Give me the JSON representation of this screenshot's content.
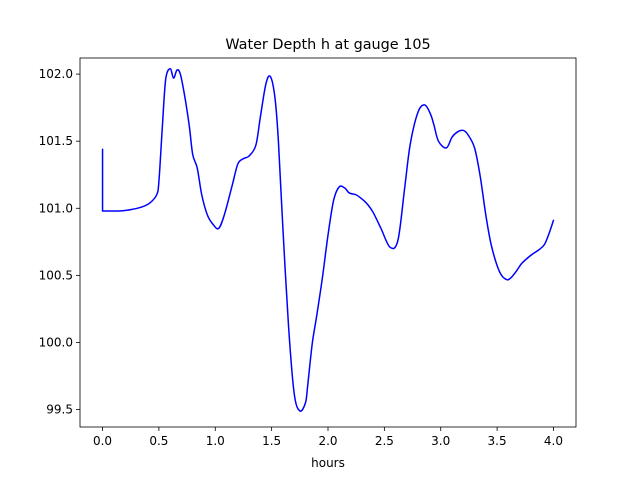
{
  "chart_data": {
    "type": "line",
    "title": "Water Depth h at gauge 105",
    "xlabel": "hours",
    "ylabel": "",
    "xlim": [
      -0.2,
      4.2
    ],
    "ylim": [
      99.37,
      102.12
    ],
    "grid": false,
    "x_ticks": [
      0.0,
      0.5,
      1.0,
      1.5,
      2.0,
      2.5,
      3.0,
      3.5,
      4.0
    ],
    "x_tick_labels": [
      "0.0",
      "0.5",
      "1.0",
      "1.5",
      "2.0",
      "2.5",
      "3.0",
      "3.5",
      "4.0"
    ],
    "y_ticks": [
      99.5,
      100.0,
      100.5,
      101.0,
      101.5,
      102.0
    ],
    "y_tick_labels": [
      "99.5",
      "100.0",
      "100.5",
      "101.0",
      "101.5",
      "102.0"
    ],
    "series": [
      {
        "color": "#0000ff",
        "x": [
          0.0,
          0.0,
          0.05,
          0.15,
          0.25,
          0.35,
          0.42,
          0.48,
          0.5,
          0.53,
          0.56,
          0.6,
          0.63,
          0.66,
          0.69,
          0.73,
          0.77,
          0.8,
          0.84,
          0.88,
          0.93,
          0.98,
          1.03,
          1.08,
          1.15,
          1.2,
          1.25,
          1.3,
          1.36,
          1.4,
          1.45,
          1.49,
          1.53,
          1.56,
          1.6,
          1.65,
          1.7,
          1.75,
          1.8,
          1.82,
          1.86,
          1.9,
          1.95,
          2.0,
          2.05,
          2.1,
          2.15,
          2.18,
          2.2,
          2.25,
          2.3,
          2.35,
          2.4,
          2.47,
          2.55,
          2.62,
          2.68,
          2.73,
          2.8,
          2.86,
          2.91,
          2.94,
          2.98,
          3.05,
          3.1,
          3.15,
          3.2,
          3.24,
          3.3,
          3.35,
          3.4,
          3.45,
          3.52,
          3.58,
          3.62,
          3.67,
          3.72,
          3.8,
          3.87,
          3.92,
          3.96,
          4.0
        ],
        "y": [
          101.44,
          100.98,
          100.98,
          100.98,
          100.99,
          101.01,
          101.04,
          101.1,
          101.2,
          101.6,
          101.96,
          102.04,
          101.97,
          102.03,
          102.0,
          101.83,
          101.61,
          101.4,
          101.3,
          101.1,
          100.95,
          100.88,
          100.85,
          100.95,
          101.17,
          101.33,
          101.37,
          101.39,
          101.47,
          101.68,
          101.93,
          101.98,
          101.82,
          101.5,
          100.85,
          100.12,
          99.62,
          99.49,
          99.55,
          99.68,
          99.99,
          100.2,
          100.48,
          100.8,
          101.06,
          101.16,
          101.15,
          101.12,
          101.11,
          101.1,
          101.07,
          101.03,
          100.97,
          100.85,
          100.71,
          100.76,
          101.15,
          101.48,
          101.72,
          101.77,
          101.7,
          101.62,
          101.5,
          101.45,
          101.53,
          101.57,
          101.58,
          101.55,
          101.45,
          101.24,
          100.95,
          100.72,
          100.53,
          100.47,
          100.48,
          100.53,
          100.59,
          100.65,
          100.69,
          100.73,
          100.81,
          100.91
        ]
      }
    ]
  }
}
